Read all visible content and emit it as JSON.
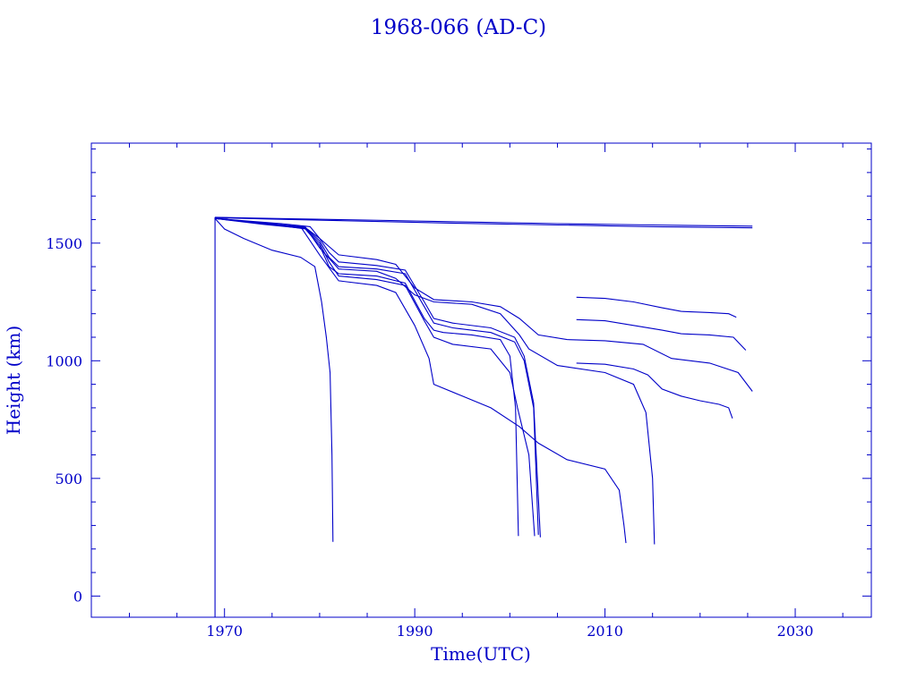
{
  "chart_data": {
    "type": "line",
    "title": "1968-066 (AD-C)",
    "xlabel": "Time(UTC)",
    "ylabel": "Height (km)",
    "xlim": [
      1956,
      2038
    ],
    "ylim": [
      -90,
      1925
    ],
    "x_ticks": [
      1970,
      1990,
      2010,
      2030
    ],
    "y_ticks": [
      0,
      500,
      1000,
      1500
    ],
    "grid": false,
    "color": "#0000c8",
    "series": [
      {
        "x": [
          1969,
          1969
        ],
        "y": [
          1610,
          -90
        ]
      },
      {
        "x": [
          1969,
          1975,
          1985,
          1995,
          2005,
          2015,
          2025.5
        ],
        "y": [
          1610,
          1605,
          1598,
          1590,
          1583,
          1577,
          1572
        ]
      },
      {
        "x": [
          1969,
          1975,
          1985,
          1995,
          2005,
          2015,
          2025.5
        ],
        "y": [
          1608,
          1602,
          1593,
          1584,
          1577,
          1570,
          1565
        ]
      },
      {
        "x": [
          1969,
          1970,
          1972,
          1975,
          1978,
          1979.5,
          1980.2,
          1980.7,
          1981.1,
          1981.3,
          1981.4
        ],
        "y": [
          1605,
          1560,
          1520,
          1470,
          1440,
          1400,
          1250,
          1100,
          950,
          600,
          230
        ]
      },
      {
        "x": [
          1969,
          1974,
          1978.5,
          1980,
          1981,
          1982,
          1986,
          1989,
          1991,
          1992,
          1993,
          1996,
          1999,
          2000,
          2000.6,
          2000.9
        ],
        "y": [
          1605,
          1585,
          1560,
          1490,
          1400,
          1370,
          1360,
          1330,
          1180,
          1130,
          1120,
          1110,
          1090,
          1020,
          800,
          255
        ]
      },
      {
        "x": [
          1969,
          1974,
          1978.5,
          1980,
          1981,
          1982,
          1986,
          1989,
          1991,
          1992,
          1994,
          1998,
          2000.5,
          2001.5,
          2002.5,
          2003
        ],
        "y": [
          1605,
          1583,
          1565,
          1510,
          1440,
          1400,
          1390,
          1370,
          1230,
          1160,
          1140,
          1120,
          1080,
          1000,
          800,
          260
        ]
      },
      {
        "x": [
          1969,
          1974,
          1978.5,
          1980,
          1981,
          1982,
          1986,
          1989,
          1991,
          1992,
          1994,
          1998,
          2000.5,
          2001.5,
          2002.5,
          2003.2
        ],
        "y": [
          1605,
          1583,
          1566,
          1520,
          1460,
          1420,
          1405,
          1385,
          1250,
          1180,
          1160,
          1140,
          1100,
          1020,
          820,
          250
        ]
      },
      {
        "x": [
          1969,
          1974,
          1978.5,
          1980,
          1981,
          1982,
          1986,
          1989,
          1991,
          1992,
          1994,
          1998,
          2000,
          2000.8,
          2002,
          2002.6
        ],
        "y": [
          1605,
          1580,
          1562,
          1500,
          1420,
          1360,
          1345,
          1320,
          1170,
          1100,
          1070,
          1050,
          950,
          800,
          600,
          255
        ]
      },
      {
        "x": [
          1969,
          1975,
          1978,
          1980,
          1982,
          1986,
          1988,
          1990,
          1991.5,
          1992,
          1995,
          1998,
          2001,
          2003,
          2006,
          2010,
          2011.5,
          2012,
          2012.2
        ],
        "y": [
          1605,
          1580,
          1570,
          1450,
          1340,
          1320,
          1290,
          1150,
          1010,
          900,
          850,
          800,
          720,
          650,
          580,
          540,
          450,
          300,
          225
        ]
      },
      {
        "x": [
          1969,
          1975,
          1978.5,
          1980,
          1982,
          1986,
          1988,
          1990,
          1992,
          1996,
          1999,
          2001,
          2002,
          2005,
          2010,
          2013,
          2014.3,
          2015,
          2015.2
        ],
        "y": [
          1605,
          1583,
          1568,
          1480,
          1390,
          1380,
          1350,
          1280,
          1250,
          1240,
          1200,
          1110,
          1050,
          980,
          950,
          900,
          780,
          500,
          220
        ]
      },
      {
        "x": [
          1969,
          1976,
          1979,
          1980,
          1982,
          1986,
          1988,
          1990,
          1992,
          1996,
          1999,
          2001,
          2003,
          2006,
          2010,
          2014,
          2017,
          2021,
          2024,
          2025.5
        ],
        "y": [
          1605,
          1583,
          1570,
          1520,
          1450,
          1430,
          1410,
          1310,
          1260,
          1250,
          1230,
          1180,
          1110,
          1090,
          1085,
          1070,
          1010,
          990,
          950,
          870
        ]
      },
      {
        "x": [
          2007,
          2010,
          2013,
          2016,
          2018,
          2021,
          2023,
          2023.8
        ],
        "y": [
          1270,
          1265,
          1250,
          1225,
          1210,
          1205,
          1200,
          1185
        ]
      },
      {
        "x": [
          2007,
          2010,
          2013,
          2016,
          2018,
          2021,
          2023.5,
          2024.8
        ],
        "y": [
          1175,
          1170,
          1150,
          1130,
          1115,
          1110,
          1100,
          1045
        ]
      },
      {
        "x": [
          2007,
          2010,
          2013,
          2014.5,
          2016,
          2018,
          2020,
          2022,
          2023,
          2023.4
        ],
        "y": [
          990,
          985,
          965,
          940,
          880,
          850,
          830,
          815,
          800,
          755
        ]
      }
    ]
  }
}
